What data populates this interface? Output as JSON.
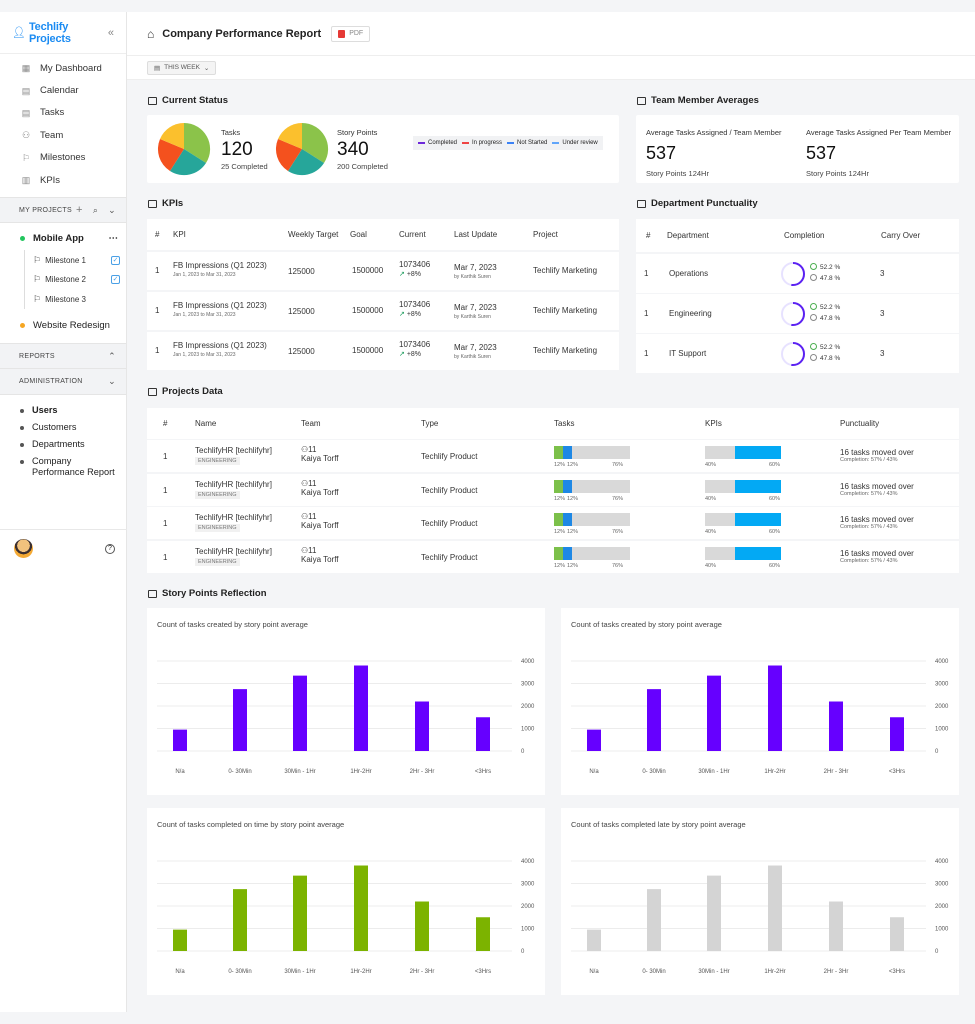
{
  "app": {
    "name": "Techlify Projects"
  },
  "sidebar": {
    "nav": [
      "My Dashboard",
      "Calendar",
      "Tasks",
      "Team",
      "Milestones",
      "KPIs"
    ],
    "my_projects_label": "MY PROJECTS",
    "projects": [
      {
        "name": "Mobile App",
        "color": "#22c55e",
        "milestones": [
          "Milestone 1",
          "Milestone 2",
          "Milestone 3"
        ]
      },
      {
        "name": "Website Redesign",
        "color": "#f5a623",
        "milestones": []
      }
    ],
    "reports_label": "REPORTS",
    "administration_label": "ADMINISTRATION",
    "admin_items": [
      "Users",
      "Customers",
      "Departments",
      "Company Performance Report"
    ]
  },
  "header": {
    "title": "Company Performance Report",
    "pdf_label": "PDF",
    "filter_label": "THIS WEEK"
  },
  "current_status": {
    "title": "Current Status",
    "tasks": {
      "label": "Tasks",
      "value": "120",
      "sub": "25 Completed"
    },
    "story_points": {
      "label": "Story Points",
      "value": "340",
      "sub": "200 Completed"
    },
    "legend": [
      {
        "label": "Completed",
        "color": "#6d28d9"
      },
      {
        "label": "In progress",
        "color": "#ef4444"
      },
      {
        "label": "Not Started",
        "color": "#3b82f6"
      },
      {
        "label": "Under review",
        "color": "#60a5fa"
      }
    ]
  },
  "team_averages": {
    "title": "Team Member Averages",
    "cols": [
      {
        "label": "Average Tasks Assigned / Team Member",
        "value": "537",
        "sub": "Story Points 124Hr"
      },
      {
        "label": "Average Tasks Assigned Per Team Member",
        "value": "537",
        "sub": "Story Points 124Hr"
      }
    ]
  },
  "kpis": {
    "title": "KPIs",
    "headers": [
      "#",
      "KPI",
      "Weekly Target",
      "Goal",
      "Current",
      "Last Update",
      "Project"
    ],
    "rows": [
      {
        "num": "1",
        "kpi": "FB Impressions (Q1 2023)",
        "range": "Jan 1, 2023 to Mar 31, 2023",
        "target": "125000",
        "goal": "1500000",
        "current": "1073406",
        "change": "+8%",
        "date": "Mar 7, 2023",
        "by": "by Karthik Suren",
        "project": "Techlify Marketing"
      },
      {
        "num": "1",
        "kpi": "FB Impressions (Q1 2023)",
        "range": "Jan 1, 2023 to Mar 31, 2023",
        "target": "125000",
        "goal": "1500000",
        "current": "1073406",
        "change": "+8%",
        "date": "Mar 7, 2023",
        "by": "by Karthik Suren",
        "project": "Techlify Marketing"
      },
      {
        "num": "1",
        "kpi": "FB Impressions (Q1 2023)",
        "range": "Jan 1, 2023 to Mar 31, 2023",
        "target": "125000",
        "goal": "1500000",
        "current": "1073406",
        "change": "+8%",
        "date": "Mar 7, 2023",
        "by": "by Karthik Suren",
        "project": "Techlify Marketing"
      }
    ]
  },
  "punctuality": {
    "title": "Department Punctuality",
    "headers": [
      "#",
      "Department",
      "Completion",
      "Carry Over"
    ],
    "rows": [
      {
        "num": "1",
        "dept": "Operations",
        "on_time": "52.2 %",
        "late": "47.8 %",
        "carry": "3"
      },
      {
        "num": "1",
        "dept": "Engineering",
        "on_time": "52.2 %",
        "late": "47.8 %",
        "carry": "3"
      },
      {
        "num": "1",
        "dept": "IT Support",
        "on_time": "52.2 %",
        "late": "47.8 %",
        "carry": "3"
      }
    ]
  },
  "projects_data": {
    "title": "Projects Data",
    "headers": [
      "#",
      "Name",
      "Team",
      "Type",
      "Tasks",
      "KPIs",
      "Punctuality"
    ],
    "rows": [
      {
        "num": "1",
        "name": "TechlifyHR [techlifyhr]",
        "tag": "ENGINEERING",
        "team_count": "11",
        "team_lead": "Kaiya Torff",
        "type": "Techlify Product",
        "task_pcts": [
          "12%",
          "12%",
          "76%"
        ],
        "kpi_pcts": [
          "40%",
          "60%"
        ],
        "punct": "16 tasks moved over",
        "punct_sub": "Completion: 57% / 43%"
      },
      {
        "num": "1",
        "name": "TechlifyHR [techlifyhr]",
        "tag": "ENGINEERING",
        "team_count": "11",
        "team_lead": "Kaiya Torff",
        "type": "Techlify Product",
        "task_pcts": [
          "12%",
          "12%",
          "76%"
        ],
        "kpi_pcts": [
          "40%",
          "60%"
        ],
        "punct": "16 tasks moved over",
        "punct_sub": "Completion: 57% / 43%"
      },
      {
        "num": "1",
        "name": "TechlifyHR [techlifyhr]",
        "tag": "ENGINEERING",
        "team_count": "11",
        "team_lead": "Kaiya Torff",
        "type": "Techlify Product",
        "task_pcts": [
          "12%",
          "12%",
          "76%"
        ],
        "kpi_pcts": [
          "40%",
          "60%"
        ],
        "punct": "16 tasks moved over",
        "punct_sub": "Completion: 57% / 43%"
      },
      {
        "num": "1",
        "name": "TechlifyHR [techlifyhr]",
        "tag": "ENGINEERING",
        "team_count": "11",
        "team_lead": "Kaiya Torff",
        "type": "Techlify Product",
        "task_pcts": [
          "12%",
          "12%",
          "76%"
        ],
        "kpi_pcts": [
          "40%",
          "60%"
        ],
        "punct": "16 tasks moved over",
        "punct_sub": "Completion: 57% / 43%"
      }
    ]
  },
  "story_points_reflection": {
    "title": "Story Points Reflection"
  },
  "chart_data": [
    {
      "type": "bar",
      "title": "Count of tasks created by story point average",
      "categories": [
        "N/a",
        "0- 30Min",
        "30Min - 1Hr",
        "1Hr-2Hr",
        "2Hr - 3Hr",
        "<3Hrs"
      ],
      "values": [
        950,
        2750,
        3350,
        3800,
        2200,
        1500
      ],
      "ylim": [
        0,
        4000
      ],
      "yticks": [
        "4000",
        "3000",
        "2000",
        "1000",
        "0"
      ],
      "color": "#6600ff"
    },
    {
      "type": "bar",
      "title": "Count of tasks created by story point average",
      "categories": [
        "N/a",
        "0- 30Min",
        "30Min - 1Hr",
        "1Hr-2Hr",
        "2Hr - 3Hr",
        "<3Hrs"
      ],
      "values": [
        950,
        2750,
        3350,
        3800,
        2200,
        1500
      ],
      "ylim": [
        0,
        4000
      ],
      "yticks": [
        "4000",
        "3000",
        "2000",
        "1000",
        "0"
      ],
      "color": "#6600ff"
    },
    {
      "type": "bar",
      "title": "Count of tasks completed on time by story point average",
      "categories": [
        "N/a",
        "0- 30Min",
        "30Min - 1Hr",
        "1Hr-2Hr",
        "2Hr - 3Hr",
        "<3Hrs"
      ],
      "values": [
        950,
        2750,
        3350,
        3800,
        2200,
        1500
      ],
      "ylim": [
        0,
        4000
      ],
      "yticks": [
        "4000",
        "3000",
        "2000",
        "1000",
        "0"
      ],
      "color": "#7cb300"
    },
    {
      "type": "bar",
      "title": "Count of tasks completed late by story point average",
      "categories": [
        "N/a",
        "0- 30Min",
        "30Min - 1Hr",
        "1Hr-2Hr",
        "2Hr - 3Hr",
        "<3Hrs"
      ],
      "values": [
        950,
        2750,
        3350,
        3800,
        2200,
        1500
      ],
      "ylim": [
        0,
        4000
      ],
      "yticks": [
        "4000",
        "3000",
        "2000",
        "1000",
        "0"
      ],
      "color": "#d4d4d4"
    }
  ],
  "colors": {
    "accent": "#1b8bf2",
    "tasks_green": "#7cc04a",
    "tasks_blue": "#1e88e5",
    "kpi_blue": "#03a9f4",
    "ring": "#5b21f2"
  }
}
